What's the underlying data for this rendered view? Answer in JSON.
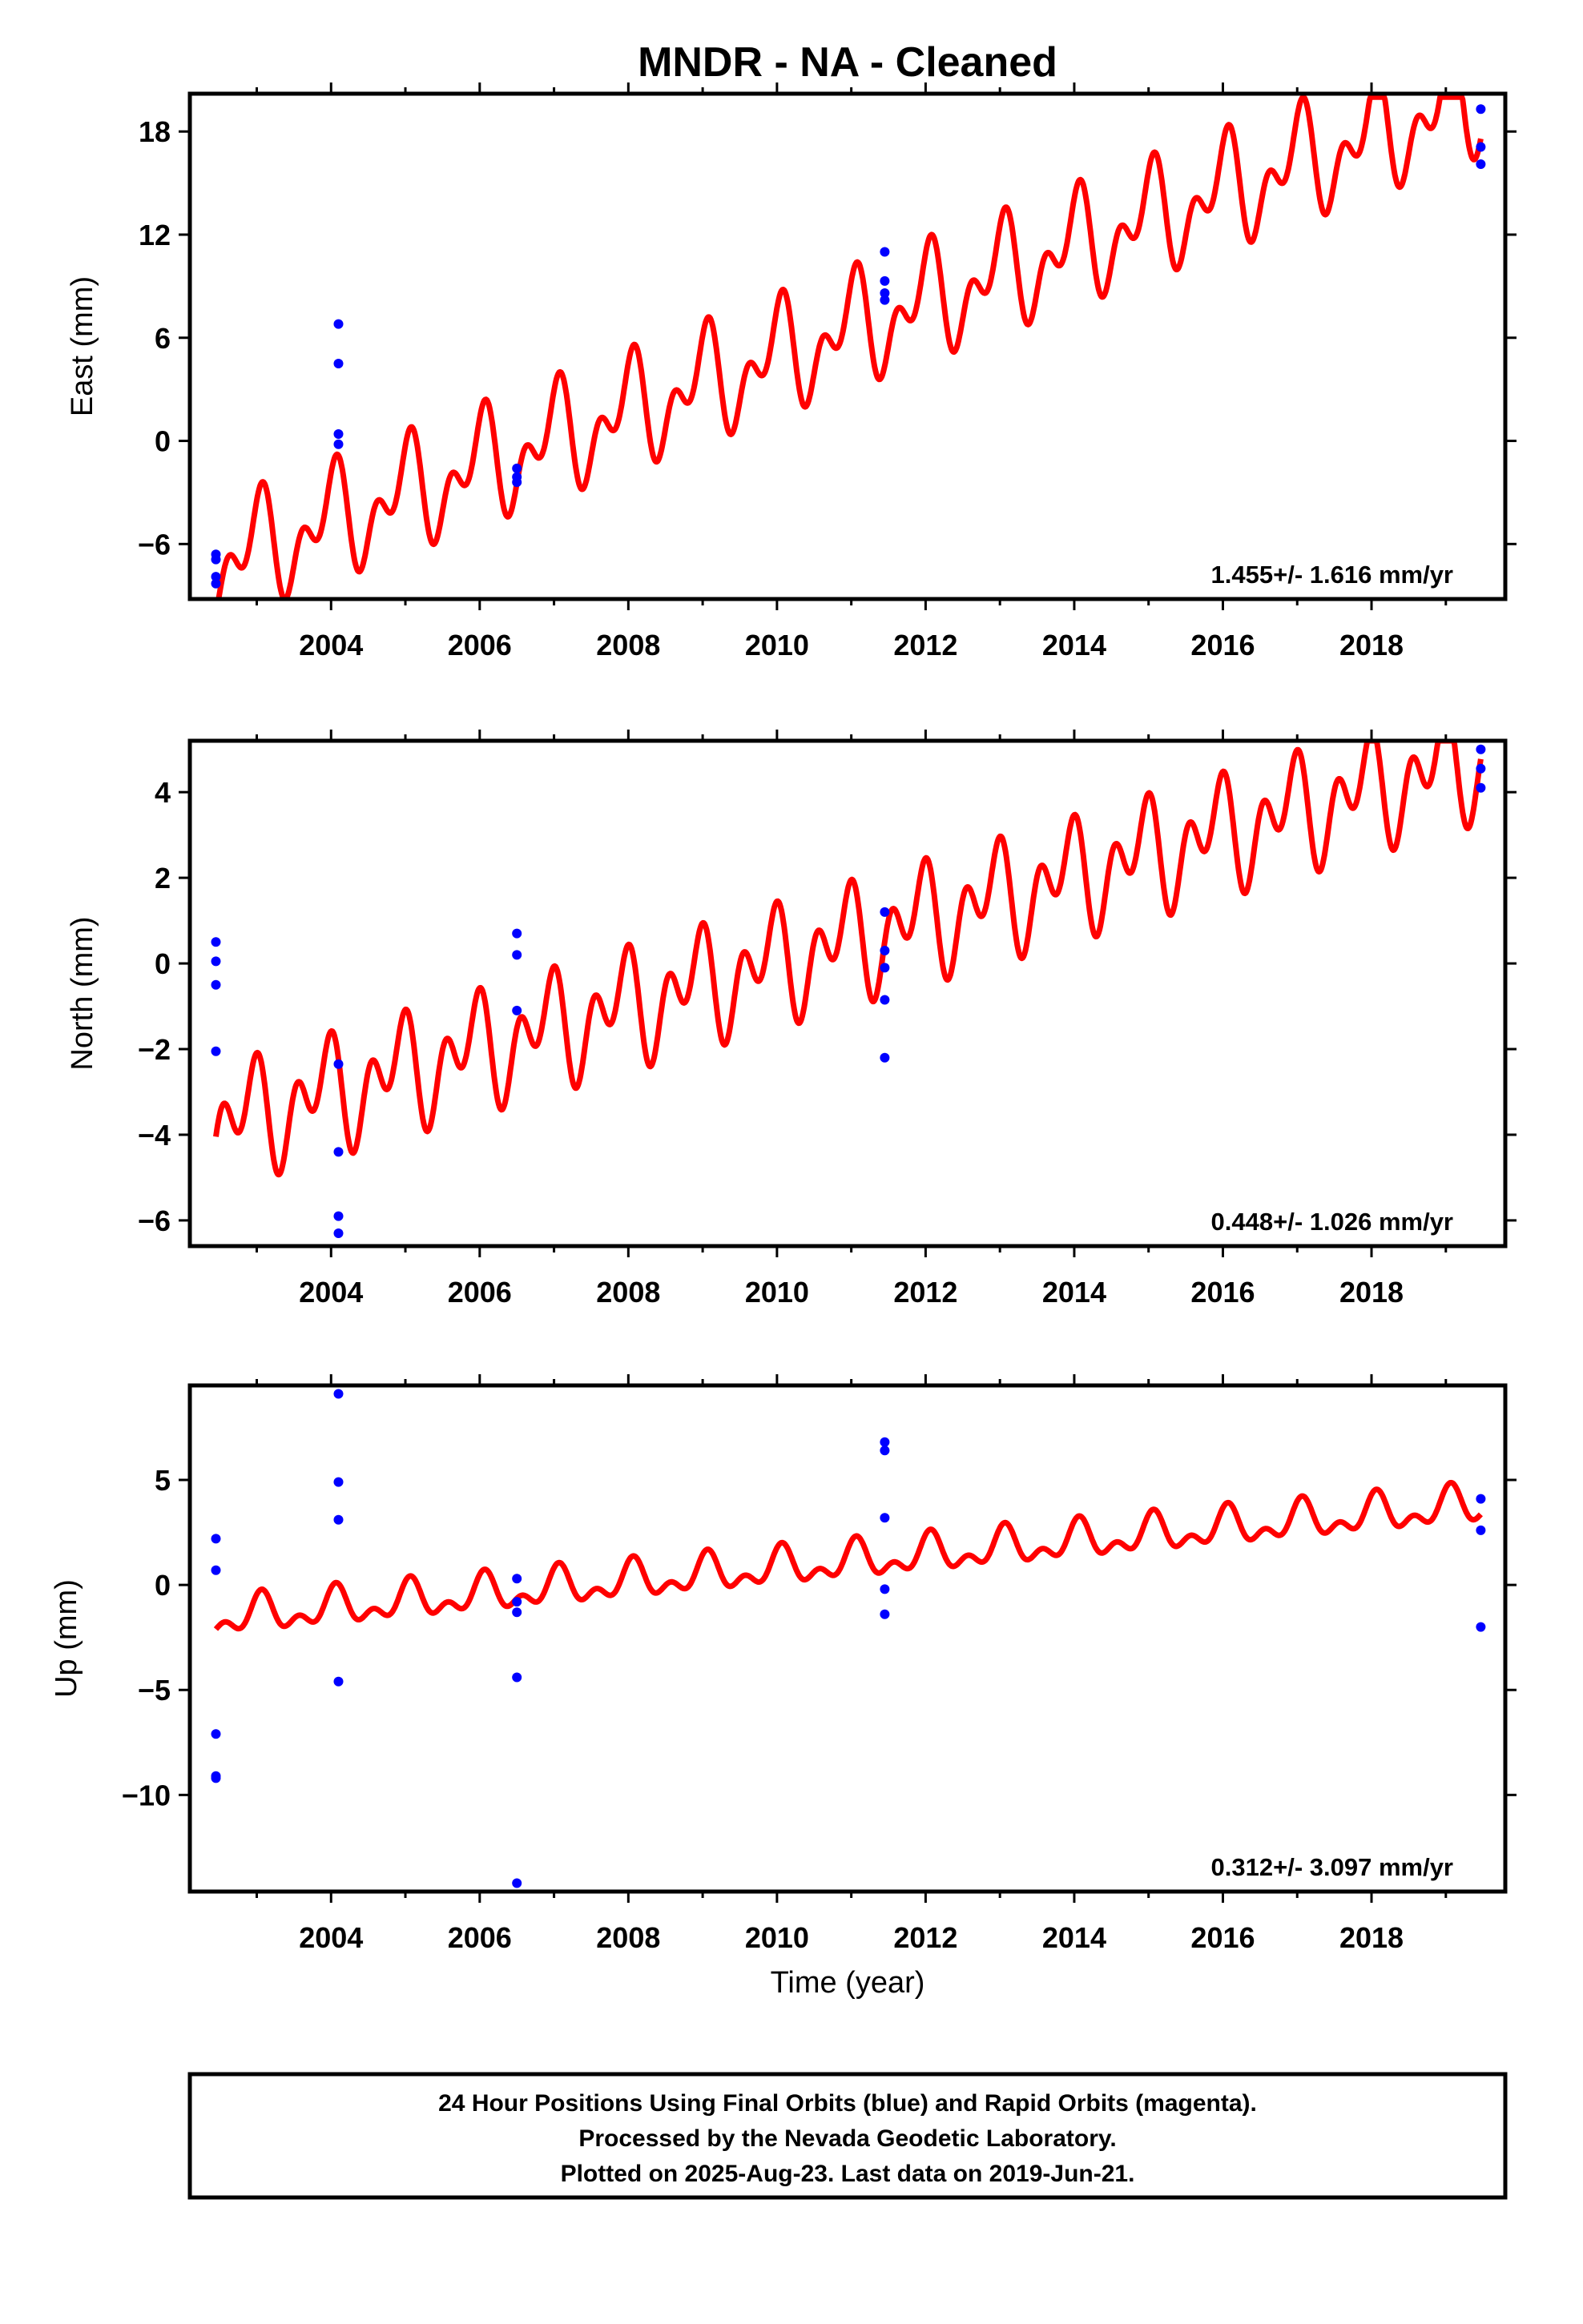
{
  "title": "MNDR  - NA - Cleaned",
  "xlabel": "Time (year)",
  "footer": [
    "24 Hour Positions Using Final Orbits (blue) and Rapid Orbits (magenta).",
    "Processed by the Nevada Geodetic Laboratory.",
    "Plotted on 2025-Aug-23. Last data on 2019-Jun-21."
  ],
  "colors": {
    "final_orbits": "#0000ff",
    "model": "#ff0000",
    "frame": "#000000"
  },
  "chart_data": [
    {
      "type": "scatter",
      "name": "east",
      "ylabel": "East (mm)",
      "rate_label": "1.455+/- 1.616 mm/yr",
      "xlim": [
        2002.1,
        2019.8
      ],
      "ylim": [
        -9.2,
        20.2
      ],
      "xticks": [
        2004,
        2006,
        2008,
        2010,
        2012,
        2014,
        2016,
        2018
      ],
      "yticks": [
        -6,
        0,
        6,
        12,
        18
      ],
      "ytick_labels": [
        "−6",
        "0",
        "6",
        "12",
        "18"
      ],
      "points": [
        [
          2002.45,
          -6.6
        ],
        [
          2002.45,
          -6.9
        ],
        [
          2002.45,
          -7.9
        ],
        [
          2002.45,
          -8.3
        ],
        [
          2004.1,
          6.8
        ],
        [
          2004.1,
          4.5
        ],
        [
          2004.1,
          0.4
        ],
        [
          2004.1,
          -0.2
        ],
        [
          2006.5,
          -1.6
        ],
        [
          2006.5,
          -2.1
        ],
        [
          2006.5,
          -2.4
        ],
        [
          2011.45,
          11.0
        ],
        [
          2011.45,
          9.3
        ],
        [
          2011.45,
          8.6
        ],
        [
          2011.45,
          8.2
        ],
        [
          2019.47,
          19.3
        ],
        [
          2019.47,
          17.1
        ],
        [
          2019.47,
          16.1
        ]
      ],
      "model": {
        "t0": 2002.45,
        "t1": 2019.47,
        "start": -7.2,
        "end": 20.0,
        "amp1": 2.3,
        "amp2": 1.9,
        "phase1": 1.6,
        "phase2": 0.3,
        "clip_top": 20.0
      }
    },
    {
      "type": "scatter",
      "name": "north",
      "ylabel": "North (mm)",
      "rate_label": "0.448+/- 1.026 mm/yr",
      "xlim": [
        2002.1,
        2019.8
      ],
      "ylim": [
        -6.6,
        5.2
      ],
      "xticks": [
        2004,
        2006,
        2008,
        2010,
        2012,
        2014,
        2016,
        2018
      ],
      "yticks": [
        -6,
        -4,
        -2,
        0,
        2,
        4
      ],
      "ytick_labels": [
        "−6",
        "−4",
        "−2",
        "0",
        "2",
        "4"
      ],
      "points": [
        [
          2002.45,
          0.5
        ],
        [
          2002.45,
          0.05
        ],
        [
          2002.45,
          -0.5
        ],
        [
          2002.45,
          -2.05
        ],
        [
          2004.1,
          -2.35
        ],
        [
          2004.1,
          -4.4
        ],
        [
          2004.1,
          -5.9
        ],
        [
          2004.1,
          -6.3
        ],
        [
          2006.5,
          0.7
        ],
        [
          2006.5,
          0.2
        ],
        [
          2006.5,
          -1.1
        ],
        [
          2011.45,
          1.2
        ],
        [
          2011.45,
          0.3
        ],
        [
          2011.45,
          -0.1
        ],
        [
          2011.45,
          -0.85
        ],
        [
          2011.45,
          -2.2
        ],
        [
          2019.47,
          5.0
        ],
        [
          2019.47,
          4.55
        ],
        [
          2019.47,
          4.1
        ]
      ],
      "model": {
        "t0": 2002.45,
        "t1": 2019.47,
        "start": -3.8,
        "end": 4.8,
        "amp1": 0.8,
        "amp2": 0.9,
        "phase1": 2.3,
        "phase2": 1.2,
        "clip_top": 5.2
      }
    },
    {
      "type": "scatter",
      "name": "up",
      "ylabel": "Up (mm)",
      "xlabel": "Time (year)",
      "rate_label": "0.312+/- 3.097 mm/yr",
      "xlim": [
        2002.1,
        2019.8
      ],
      "ylim": [
        -14.6,
        9.5
      ],
      "xticks": [
        2004,
        2006,
        2008,
        2010,
        2012,
        2014,
        2016,
        2018
      ],
      "yticks": [
        -10,
        -5,
        0,
        5
      ],
      "ytick_labels": [
        "−10",
        "−5",
        "0",
        "5"
      ],
      "points": [
        [
          2002.45,
          2.2
        ],
        [
          2002.45,
          0.7
        ],
        [
          2002.45,
          -7.1
        ],
        [
          2002.45,
          -9.1
        ],
        [
          2002.45,
          -9.2
        ],
        [
          2004.1,
          9.1
        ],
        [
          2004.1,
          4.9
        ],
        [
          2004.1,
          3.1
        ],
        [
          2004.1,
          -4.6
        ],
        [
          2006.5,
          0.3
        ],
        [
          2006.5,
          -0.8
        ],
        [
          2006.5,
          -1.3
        ],
        [
          2006.5,
          -4.4
        ],
        [
          2006.5,
          -14.2
        ],
        [
          2011.45,
          6.8
        ],
        [
          2011.45,
          6.4
        ],
        [
          2011.45,
          3.2
        ],
        [
          2011.45,
          -0.2
        ],
        [
          2011.45,
          -1.4
        ],
        [
          2019.47,
          4.1
        ],
        [
          2019.47,
          2.6
        ],
        [
          2019.47,
          -2.0
        ]
      ],
      "model": {
        "t0": 2002.45,
        "t1": 2019.47,
        "start": -1.6,
        "end": 3.8,
        "amp1": 0.7,
        "amp2": 0.5,
        "phase1": 1.2,
        "phase2": 0.7,
        "clip_top": 9.5
      }
    }
  ]
}
